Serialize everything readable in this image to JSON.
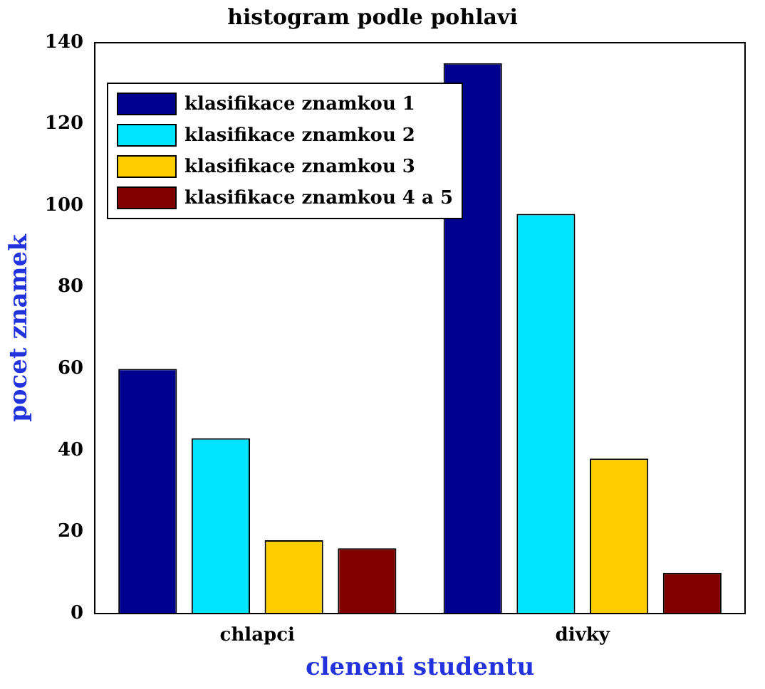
{
  "chart_data": {
    "type": "bar",
    "title": "histogram podle pohlavi",
    "xlabel": "cleneni studentu",
    "ylabel": "pocet znamek",
    "categories": [
      "chlapci",
      "divky"
    ],
    "series": [
      {
        "name": "klasifikace znamkou 1",
        "color": "#00008f",
        "values": [
          60,
          135
        ]
      },
      {
        "name": "klasifikace znamkou 2",
        "color": "#00e5ff",
        "values": [
          43,
          98
        ]
      },
      {
        "name": "klasifikace znamkou 3",
        "color": "#ffcc00",
        "values": [
          18,
          38
        ]
      },
      {
        "name": "klasifikace znamkou 4 a 5",
        "color": "#800000",
        "values": [
          16,
          10
        ]
      }
    ],
    "ylim": [
      0,
      140
    ],
    "yticks": [
      0,
      20,
      40,
      60,
      80,
      100,
      120,
      140
    ],
    "grid": false,
    "legend": "top left"
  }
}
